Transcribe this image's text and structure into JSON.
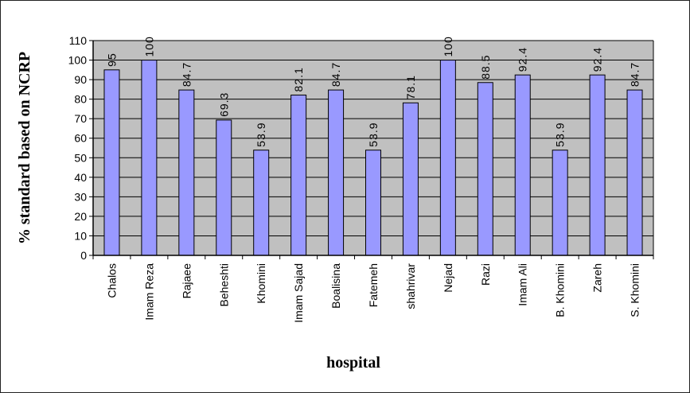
{
  "chart_data": {
    "type": "bar",
    "title": "",
    "xlabel": "hospital",
    "ylabel": "% standard based on NCRP",
    "ylim": [
      0,
      110
    ],
    "yticks": [
      0,
      10,
      20,
      30,
      40,
      50,
      60,
      70,
      80,
      90,
      100,
      110
    ],
    "grid": true,
    "legend": "none",
    "categories": [
      "Chalos",
      "Imam Reza",
      "Rajaee",
      "Beheshti",
      "Khomini",
      "Imam Sajad",
      "Boalisina",
      "Fatemeh",
      "shahrivar",
      "Nejad",
      "Razi",
      "Imam Ali",
      "B. Khomini",
      "Zareh",
      "S. Khomini"
    ],
    "values": [
      95,
      100,
      84.7,
      69.3,
      53.9,
      82.1,
      84.7,
      53.9,
      78.1,
      100,
      88.5,
      92.4,
      53.9,
      92.4,
      84.7
    ],
    "data_labels": [
      "95",
      "100",
      "84.7",
      "69.3",
      "53.9",
      "82.1",
      "84.7",
      "53.9",
      "78.1",
      "100",
      "88.5",
      "92.4",
      "53.9",
      "92.4",
      "84.7"
    ],
    "colors": {
      "bar_fill": "#9999ff",
      "bar_stroke": "#000000",
      "plot_bg": "#c0c0c0",
      "grid": "#000000"
    }
  }
}
